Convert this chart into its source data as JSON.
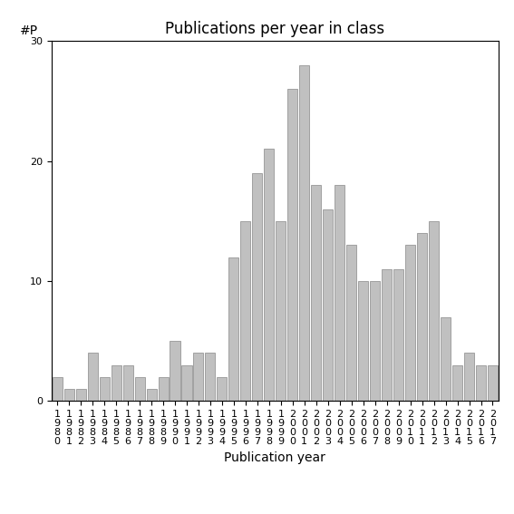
{
  "title": "Publications per year in class",
  "xlabel": "Publication year",
  "ylabel": "#P",
  "years": [
    "1980",
    "1981",
    "1982",
    "1983",
    "1984",
    "1985",
    "1986",
    "1987",
    "1988",
    "1989",
    "1990",
    "1991",
    "1992",
    "1993",
    "1994",
    "1995",
    "1996",
    "1997",
    "1998",
    "1999",
    "2000",
    "2001",
    "2002",
    "2003",
    "2004",
    "2005",
    "2006",
    "2007",
    "2008",
    "2009",
    "2010",
    "2011",
    "2012",
    "2013",
    "2014",
    "2015",
    "2016",
    "2017"
  ],
  "values": [
    2,
    1,
    1,
    4,
    2,
    3,
    3,
    2,
    1,
    2,
    5,
    3,
    4,
    4,
    2,
    12,
    15,
    19,
    21,
    15,
    26,
    28,
    18,
    16,
    18,
    13,
    10,
    10,
    11,
    11,
    13,
    14,
    15,
    7,
    3,
    4,
    3,
    3
  ],
  "ylim": [
    0,
    30
  ],
  "yticks": [
    0,
    10,
    20,
    30
  ],
  "bar_color": "#c0c0c0",
  "bar_edgecolor": "#888888",
  "title_fontsize": 12,
  "label_fontsize": 10,
  "tick_fontsize": 8,
  "background_color": "#ffffff"
}
